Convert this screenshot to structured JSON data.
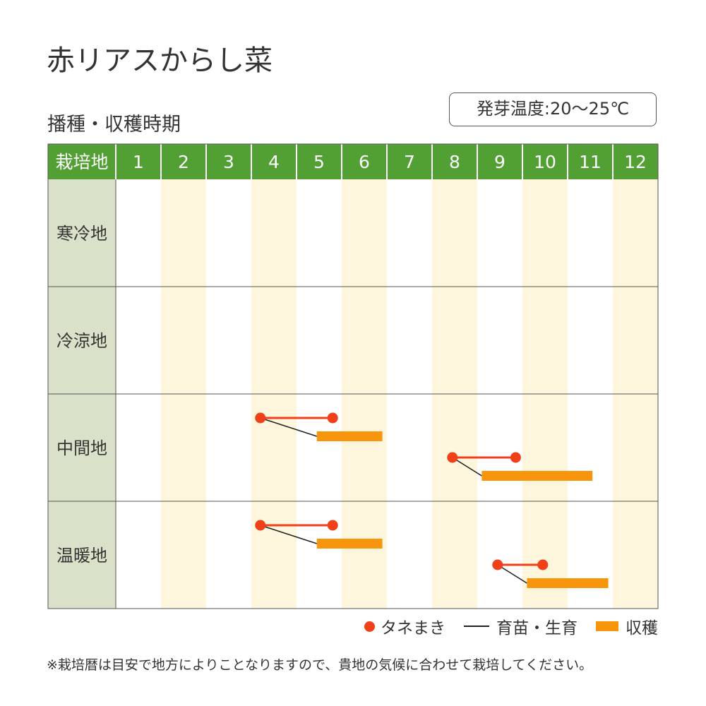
{
  "title": "赤リアスからし菜",
  "subtitle": "播種・収穫時期",
  "germination_temp": "発芽温度:20～25℃",
  "legend": {
    "sowing": "タネまき",
    "nursery": "育苗・生育",
    "harvest": "収穫"
  },
  "footnote": "※栽培暦は目安で地方によりことなりますので、貴地の気候に合わせて栽培してください。",
  "colors": {
    "header_green": "#52a033",
    "row_label_bg": "#d9e2c8",
    "stripe": "#fdf5dc",
    "sowing": "#f0401a",
    "harvest": "#f7950d",
    "nursery": "#222222"
  },
  "chart_data": {
    "type": "table",
    "corner_label": "栽培地",
    "months": [
      "1",
      "2",
      "3",
      "4",
      "5",
      "6",
      "7",
      "8",
      "9",
      "10",
      "11",
      "12"
    ],
    "month_range": [
      1,
      13
    ],
    "regions": [
      {
        "name": "寒冷地",
        "schedules": []
      },
      {
        "name": "冷涼地",
        "schedules": []
      },
      {
        "name": "中間地",
        "schedules": [
          {
            "sow_start": 4.2,
            "sow_end": 5.8,
            "harvest_start": 5.45,
            "harvest_end": 6.9
          },
          {
            "sow_start": 8.45,
            "sow_end": 9.85,
            "harvest_start": 9.1,
            "harvest_end": 11.55
          }
        ]
      },
      {
        "name": "温暖地",
        "schedules": [
          {
            "sow_start": 4.2,
            "sow_end": 5.8,
            "harvest_start": 5.45,
            "harvest_end": 6.9
          },
          {
            "sow_start": 9.45,
            "sow_end": 10.45,
            "harvest_start": 10.1,
            "harvest_end": 11.9
          }
        ]
      }
    ]
  }
}
